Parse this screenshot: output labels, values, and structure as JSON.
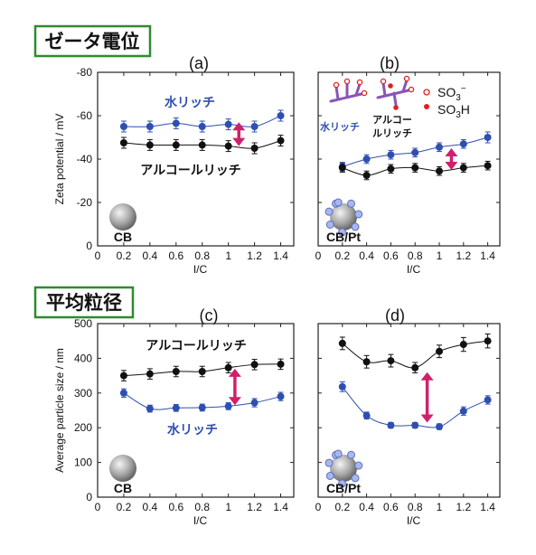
{
  "sections": {
    "zeta": "ゼータ電位",
    "size": "平均粒径"
  },
  "colors": {
    "water": "#2f4fb0",
    "alcohol": "#111111",
    "arrow": "#d0206c",
    "frame": "#2e8b2e",
    "ionomer": "#8a55b5",
    "so3h": "#e02020"
  },
  "labels": {
    "water_rich": "水リッチ",
    "alcohol_rich": "アルコールリッチ",
    "alcohol_rich_l1": "アルコー",
    "alcohol_rich_l2": "ルリッチ",
    "so3_minus": "SO",
    "so3_minus_sub": "3",
    "so3_minus_sup": "−",
    "so3h": "SO",
    "so3h_sub": "3",
    "so3h_h": "H"
  },
  "chart_data": [
    {
      "id": "a",
      "type": "line",
      "title": "(a)",
      "xlabel": "I/C",
      "ylabel": "Zeta potential / mV",
      "xlim": [
        0,
        1.5
      ],
      "ylim": [
        0,
        -80
      ],
      "xticks": [
        0,
        0.2,
        0.4,
        0.6,
        0.8,
        1,
        1.2,
        1.4
      ],
      "yticks": [
        0,
        -20,
        -40,
        -60,
        -80
      ],
      "sample": "CB",
      "series": [
        {
          "name": "水リッチ",
          "x": [
            0.2,
            0.4,
            0.6,
            0.8,
            1.0,
            1.2,
            1.4
          ],
          "y": [
            -55,
            -55,
            -56.5,
            -55,
            -56,
            -55,
            -60
          ],
          "err": [
            2.5,
            2.5,
            2.5,
            2.5,
            2.5,
            2.5,
            2.5
          ]
        },
        {
          "name": "アルコールリッチ",
          "x": [
            0.2,
            0.4,
            0.6,
            0.8,
            1.0,
            1.2,
            1.4
          ],
          "y": [
            -47.5,
            -46.5,
            -46.5,
            -46.5,
            -46,
            -45,
            -48.5
          ],
          "err": [
            2.5,
            2.5,
            2.5,
            2.5,
            2.5,
            2.5,
            2.5
          ]
        }
      ]
    },
    {
      "id": "b",
      "type": "line",
      "title": "(b)",
      "xlabel": "I/C",
      "xlim": [
        0,
        1.5
      ],
      "ylim": [
        0,
        -80
      ],
      "xticks": [
        0,
        0.2,
        0.4,
        0.6,
        0.8,
        1,
        1.2,
        1.4
      ],
      "sample": "CB/Pt",
      "series": [
        {
          "name": "水リッチ",
          "x": [
            0.2,
            0.4,
            0.6,
            0.8,
            1.0,
            1.2,
            1.4
          ],
          "y": [
            -36.5,
            -40,
            -42,
            -43,
            -45.5,
            -47,
            -50
          ],
          "err": [
            2,
            2,
            2,
            2,
            2,
            2,
            2.5
          ]
        },
        {
          "name": "アルコールリッチ",
          "x": [
            0.2,
            0.4,
            0.6,
            0.8,
            1.0,
            1.2,
            1.4
          ],
          "y": [
            -36,
            -32.5,
            -35.5,
            -36,
            -34.5,
            -36,
            -37
          ],
          "err": [
            2,
            2,
            2,
            2,
            2,
            2,
            2
          ]
        }
      ]
    },
    {
      "id": "c",
      "type": "line",
      "title": "(c)",
      "xlabel": "I/C",
      "ylabel": "Average particle size / nm",
      "xlim": [
        0,
        1.5
      ],
      "ylim": [
        0,
        500
      ],
      "xticks": [
        0,
        0.2,
        0.4,
        0.6,
        0.8,
        1,
        1.2,
        1.4
      ],
      "yticks": [
        0,
        100,
        200,
        300,
        400,
        500
      ],
      "sample": "CB",
      "series": [
        {
          "name": "アルコールリッチ",
          "x": [
            0.2,
            0.4,
            0.6,
            0.8,
            1.0,
            1.2,
            1.4
          ],
          "y": [
            350,
            355,
            362,
            362,
            373,
            382,
            383
          ],
          "err": [
            15,
            15,
            15,
            15,
            15,
            15,
            15
          ]
        },
        {
          "name": "水リッチ",
          "x": [
            0.2,
            0.4,
            0.6,
            0.8,
            1.0,
            1.2,
            1.4
          ],
          "y": [
            300,
            255,
            257,
            258,
            262,
            272,
            290
          ],
          "err": [
            12,
            10,
            10,
            10,
            10,
            12,
            12
          ]
        }
      ]
    },
    {
      "id": "d",
      "type": "line",
      "title": "(d)",
      "xlabel": "I/C",
      "xlim": [
        0,
        1.5
      ],
      "ylim": [
        0,
        500
      ],
      "xticks": [
        0,
        0.2,
        0.4,
        0.6,
        0.8,
        1,
        1.2,
        1.4
      ],
      "sample": "CB/Pt",
      "series": [
        {
          "name": "アルコールリッチ",
          "x": [
            0.2,
            0.4,
            0.6,
            0.8,
            1.0,
            1.2,
            1.4
          ],
          "y": [
            443,
            390,
            393,
            373,
            420,
            440,
            450
          ],
          "err": [
            18,
            18,
            18,
            15,
            18,
            20,
            20
          ]
        },
        {
          "name": "水リッチ",
          "x": [
            0.2,
            0.4,
            0.6,
            0.8,
            1.0,
            1.2,
            1.4
          ],
          "y": [
            318,
            235,
            207,
            207,
            203,
            248,
            280
          ],
          "err": [
            14,
            10,
            8,
            8,
            8,
            12,
            12
          ]
        }
      ]
    }
  ]
}
